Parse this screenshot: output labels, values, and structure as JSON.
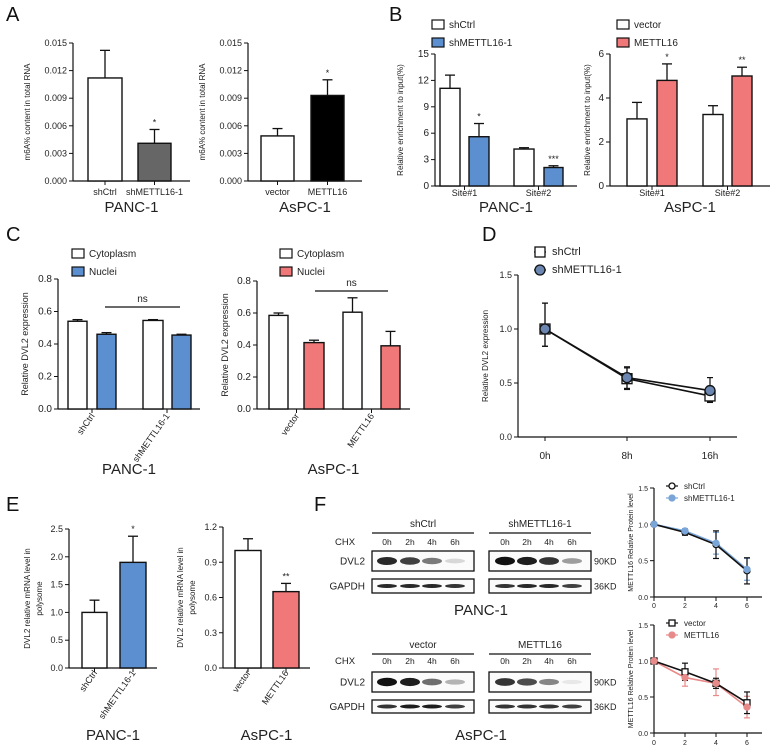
{
  "panel_labels": [
    "A",
    "B",
    "C",
    "D",
    "E",
    "F"
  ],
  "chart_data": [
    {
      "id": "A-PANC-1",
      "type": "bar",
      "title": "PANC-1",
      "ylabel": "m6A% content in total RNA",
      "ylim": [
        0,
        0.015
      ],
      "yticks": [
        "0.000",
        "0.003",
        "0.006",
        "0.009",
        "0.012",
        "0.015"
      ],
      "categories": [
        "shCtrl",
        "shMETTL16-1"
      ],
      "series": [
        {
          "values": [
            0.0112,
            0.0041
          ],
          "errors": [
            0.003,
            0.0015
          ],
          "colors": [
            "#ffffff",
            "#666666"
          ],
          "sig": [
            "",
            "*"
          ]
        }
      ]
    },
    {
      "id": "A-AsPC-1",
      "type": "bar",
      "title": "AsPC-1",
      "ylabel": "m6A% content in total RNA",
      "ylim": [
        0,
        0.015
      ],
      "yticks": [
        "0.000",
        "0.003",
        "0.006",
        "0.009",
        "0.012",
        "0.015"
      ],
      "categories": [
        "vector",
        "METTL16"
      ],
      "series": [
        {
          "values": [
            0.0049,
            0.0093
          ],
          "errors": [
            0.0008,
            0.0017
          ],
          "colors": [
            "#ffffff",
            "#000000"
          ],
          "sig": [
            "",
            "*"
          ]
        }
      ]
    },
    {
      "id": "B-PANC-1",
      "type": "bar",
      "title": "PANC-1",
      "ylabel": "Relative enrichment to input(%)",
      "ylim": [
        0,
        15
      ],
      "yticks": [
        "0",
        "3",
        "6",
        "9",
        "12",
        "15"
      ],
      "categories": [
        "Site#1",
        "Site#2"
      ],
      "series": [
        {
          "name": "shCtrl",
          "values": [
            11.1,
            4.2
          ],
          "errors": [
            1.5,
            0.15
          ],
          "color": "#ffffff",
          "sig": [
            "",
            ""
          ]
        },
        {
          "name": "shMETTL16-1",
          "values": [
            5.6,
            2.1
          ],
          "errors": [
            1.5,
            0.2
          ],
          "color": "#5b8fd0",
          "sig": [
            "*",
            "***"
          ]
        }
      ]
    },
    {
      "id": "B-AsPC-1",
      "type": "bar",
      "title": "AsPC-1",
      "ylabel": "Relative enrichment to input(%)",
      "ylim": [
        0,
        6
      ],
      "yticks": [
        "0",
        "2",
        "4",
        "6"
      ],
      "categories": [
        "Site#1",
        "Site#2"
      ],
      "series": [
        {
          "name": "vector",
          "values": [
            3.05,
            3.25
          ],
          "errors": [
            0.75,
            0.4
          ],
          "color": "#ffffff",
          "sig": [
            "",
            ""
          ]
        },
        {
          "name": "METTL16",
          "values": [
            4.8,
            5.0
          ],
          "errors": [
            0.75,
            0.4
          ],
          "color": "#f07878",
          "sig": [
            "*",
            "**"
          ]
        }
      ]
    },
    {
      "id": "C-PANC-1",
      "type": "bar",
      "title": "PANC-1",
      "ylabel": "Relative DVL2 expression",
      "ylim": [
        0,
        0.8
      ],
      "yticks": [
        "0.0",
        "0.2",
        "0.4",
        "0.6",
        "0.8"
      ],
      "categories": [
        "shCtrl",
        "shMETTL16-1"
      ],
      "annotation": "ns",
      "series": [
        {
          "name": "Cytoplasm",
          "values": [
            0.54,
            0.545
          ],
          "errors": [
            0.01,
            0.005
          ],
          "color": "#ffffff"
        },
        {
          "name": "Nuclei",
          "values": [
            0.46,
            0.455
          ],
          "errors": [
            0.01,
            0.005
          ],
          "color": "#5b8fd0"
        }
      ]
    },
    {
      "id": "C-AsPC-1",
      "type": "bar",
      "title": "AsPC-1",
      "ylabel": "Relative DVL2 expression",
      "ylim": [
        0,
        0.8
      ],
      "yticks": [
        "0.0",
        "0.2",
        "0.4",
        "0.6",
        "0.8"
      ],
      "categories": [
        "vector",
        "METTL16"
      ],
      "annotation": "ns",
      "series": [
        {
          "name": "Cytoplasm",
          "values": [
            0.585,
            0.605
          ],
          "errors": [
            0.015,
            0.09
          ],
          "color": "#ffffff"
        },
        {
          "name": "Nuclei",
          "values": [
            0.415,
            0.395
          ],
          "errors": [
            0.015,
            0.09
          ],
          "color": "#f07878"
        }
      ]
    },
    {
      "id": "D",
      "type": "line",
      "ylabel": "Relative DVL2 expression",
      "ylim": [
        0,
        1.5
      ],
      "yticks": [
        "0.0",
        "0.5",
        "1.0",
        "1.5"
      ],
      "categories": [
        "0h",
        "8h",
        "16h"
      ],
      "series": [
        {
          "name": "shCtrl",
          "values": [
            1.0,
            0.54,
            0.38
          ],
          "err_up": [
            0.24,
            0.1,
            0.04
          ],
          "err_down": [
            0.16,
            0.1,
            0.06
          ],
          "color": "#ffffff",
          "line": "#111111",
          "marker": "square"
        },
        {
          "name": "shMETTL16-1",
          "values": [
            1.0,
            0.55,
            0.43
          ],
          "err_up": [
            0.24,
            0.1,
            0.12
          ],
          "err_down": [
            0.16,
            0.1,
            0.1
          ],
          "color": "#6b86b0",
          "line": "#111111",
          "marker": "circle"
        }
      ]
    },
    {
      "id": "E-PANC-1",
      "type": "bar",
      "title": "PANC-1",
      "ylabel": [
        "DVL2 relative mRNA level in",
        "polysome"
      ],
      "ylim": [
        0,
        2.5
      ],
      "yticks": [
        "0.0",
        "0.5",
        "1.0",
        "1.5",
        "2.0",
        "2.5"
      ],
      "categories": [
        "shCtrl",
        "shMETTL16-1"
      ],
      "series": [
        {
          "values": [
            1.0,
            1.9
          ],
          "errors": [
            0.22,
            0.47
          ],
          "colors": [
            "#ffffff",
            "#5b8fd0"
          ],
          "sig": [
            "",
            "*"
          ]
        }
      ]
    },
    {
      "id": "E-AsPC-1",
      "type": "bar",
      "title": "AsPC-1",
      "ylabel": [
        "DVL2 relative mRNA level in",
        "polysome"
      ],
      "ylim": [
        0,
        1.2
      ],
      "yticks": [
        "0.0",
        "0.3",
        "0.6",
        "0.9",
        "1.2"
      ],
      "categories": [
        "vector",
        "METTL16"
      ],
      "series": [
        {
          "values": [
            1.0,
            0.65
          ],
          "errors": [
            0.1,
            0.07
          ],
          "colors": [
            "#ffffff",
            "#f07878"
          ],
          "sig": [
            "",
            "**"
          ]
        }
      ]
    },
    {
      "id": "F-PANC-1-quant",
      "type": "line",
      "ylabel": "METTL16 Relative Protein level",
      "ylim": [
        0,
        1.5
      ],
      "yticks": [
        "0.0",
        "0.5",
        "1.0",
        "1.5"
      ],
      "x": [
        0,
        2,
        4,
        6
      ],
      "xticks": [
        "0",
        "2",
        "4",
        "6"
      ],
      "xlim": [
        0,
        7
      ],
      "series": [
        {
          "name": "shCtrl",
          "values": [
            1.0,
            0.89,
            0.72,
            0.36
          ],
          "err_up": [
            0,
            0.04,
            0.19,
            0.18
          ],
          "err_down": [
            0,
            0.04,
            0.19,
            0.18
          ],
          "color": "#ffffff",
          "line": "#111111",
          "marker": "circle"
        },
        {
          "name": "shMETTL16-1",
          "values": [
            1.0,
            0.91,
            0.74,
            0.38
          ],
          "err_up": [
            0,
            0.03,
            0.15,
            0.15
          ],
          "err_down": [
            0,
            0.03,
            0.15,
            0.15
          ],
          "color": "#7aa5d8",
          "line": "#7aa5d8",
          "marker": "circle"
        }
      ]
    },
    {
      "id": "F-AsPC-1-quant",
      "type": "line",
      "ylabel": "METTL16 Relative Protein level",
      "ylim": [
        0,
        1.5
      ],
      "yticks": [
        "0.0",
        "0.5",
        "1.0",
        "1.5"
      ],
      "x": [
        0,
        2,
        4,
        6
      ],
      "xticks": [
        "0",
        "2",
        "4",
        "6"
      ],
      "xlim": [
        0,
        7
      ],
      "series": [
        {
          "name": "vector",
          "values": [
            1.0,
            0.85,
            0.69,
            0.42
          ],
          "err_up": [
            0,
            0.12,
            0.07,
            0.15
          ],
          "err_down": [
            0,
            0.12,
            0.07,
            0.15
          ],
          "color": "#ffffff",
          "line": "#111111",
          "marker": "square"
        },
        {
          "name": "METTL16",
          "values": [
            1.0,
            0.77,
            0.69,
            0.36
          ],
          "err_up": [
            0,
            0.12,
            0.2,
            0.15
          ],
          "err_down": [
            0,
            0.12,
            0.17,
            0.15
          ],
          "color": "#e88a8a",
          "line": "#e88a8a",
          "marker": "circle"
        }
      ]
    }
  ],
  "blots": [
    {
      "cell_line": "PANC-1",
      "treatment_label": "CHX",
      "timepoints": [
        "0h",
        "2h",
        "4h",
        "6h"
      ],
      "groups": [
        "shCtrl",
        "shMETTL16-1"
      ],
      "rows": [
        {
          "protein": "DVL2",
          "size": "90KD",
          "intensity": [
            [
              0.9,
              0.8,
              0.55,
              0.15
            ],
            [
              1.0,
              0.95,
              0.85,
              0.4
            ]
          ]
        },
        {
          "protein": "GAPDH",
          "size": "36KD",
          "intensity": [
            [
              0.9,
              0.9,
              0.9,
              0.85
            ],
            [
              0.85,
              0.9,
              0.9,
              0.8
            ]
          ]
        }
      ]
    },
    {
      "cell_line": "AsPC-1",
      "treatment_label": "CHX",
      "timepoints": [
        "0h",
        "2h",
        "4h",
        "6h"
      ],
      "groups": [
        "vector",
        "METTL16"
      ],
      "rows": [
        {
          "protein": "DVL2",
          "size": "90KD",
          "intensity": [
            [
              1.0,
              0.95,
              0.6,
              0.3
            ],
            [
              0.85,
              0.75,
              0.5,
              0.08
            ]
          ]
        },
        {
          "protein": "GAPDH",
          "size": "36KD",
          "intensity": [
            [
              0.85,
              0.95,
              0.95,
              0.8
            ],
            [
              0.85,
              0.85,
              0.85,
              0.8
            ]
          ]
        }
      ]
    }
  ]
}
